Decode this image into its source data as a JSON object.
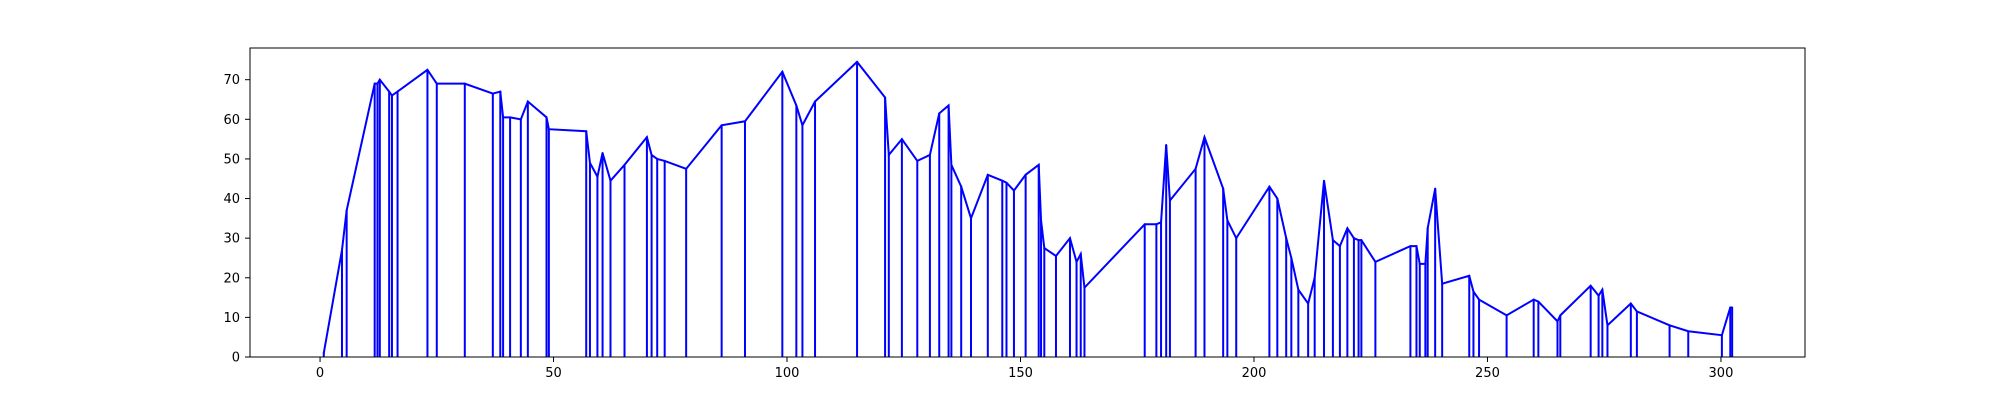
{
  "chart_data": {
    "type": "line",
    "title": "",
    "xlabel": "",
    "ylabel": "",
    "xlim": [
      -15,
      318
    ],
    "ylim": [
      0,
      78
    ],
    "xticks": [
      0,
      50,
      100,
      150,
      200,
      250,
      300
    ],
    "yticks": [
      0,
      10,
      20,
      30,
      40,
      50,
      60,
      70
    ],
    "grid": false,
    "line_color": "#0000ff",
    "drop_lines_to_axis": true,
    "series": [
      {
        "x": [
          0.8,
          4.7,
          5.7,
          11.7,
          12.3,
          12.8,
          14.8,
          15.4,
          16.6,
          23.0,
          25.0,
          31.0,
          37.0,
          38.6,
          39.2,
          40.7,
          43.0,
          44.5,
          48.5,
          49.0,
          57.0,
          57.8,
          59.4,
          60.5,
          62.2,
          65.2,
          70.0,
          71.0,
          72.2,
          73.8,
          78.4,
          86.0,
          91.0,
          99.0,
          102.0,
          103.3,
          106.0,
          115.0,
          121.0,
          121.8,
          124.6,
          127.9,
          130.6,
          132.6,
          134.6,
          135.2,
          137.3,
          139.4,
          143.0,
          146.1,
          147.0,
          148.6,
          151.1,
          153.9,
          154.4,
          155.1,
          157.6,
          160.6,
          162.0,
          162.9,
          163.7,
          176.6,
          179.1,
          180.1,
          181.2,
          182.0,
          187.5,
          189.4,
          193.4,
          194.3,
          196.2,
          203.3,
          205.0,
          206.9,
          208.0,
          209.5,
          211.6,
          213.0,
          215.0,
          216.9,
          218.4,
          220.0,
          221.4,
          222.4,
          223.0,
          226.0,
          233.5,
          234.8,
          235.5,
          236.7,
          237.2,
          238.8,
          240.3,
          246.1,
          247.0,
          248.2,
          254.1,
          259.9,
          260.9,
          265.0,
          265.6,
          272.1,
          273.8,
          274.6,
          275.7,
          280.7,
          282.0,
          289.0,
          293.0,
          300.2,
          302.0,
          302.4
        ],
        "y": [
          1,
          27,
          37,
          69,
          69,
          70,
          67,
          66,
          67,
          72.5,
          69,
          69,
          66.5,
          67,
          60.5,
          60.5,
          60,
          64.5,
          60.5,
          57.5,
          57,
          49,
          45.5,
          51.5,
          44.5,
          48.5,
          55.5,
          51,
          50,
          49.5,
          47.5,
          58.5,
          59.5,
          72,
          63.5,
          58.5,
          64.5,
          74.5,
          65.5,
          51,
          55,
          49.5,
          51,
          61.5,
          63.5,
          48.5,
          43,
          35,
          46,
          44.5,
          44,
          42,
          46,
          48.5,
          34.5,
          27.5,
          25.5,
          30,
          24,
          26,
          17.5,
          33.5,
          33.5,
          34,
          53.5,
          39.5,
          47.5,
          55.5,
          42.5,
          34.5,
          30,
          43,
          40,
          30,
          25,
          17,
          13.5,
          20,
          44.5,
          29.5,
          28,
          32.5,
          30,
          29.5,
          29.5,
          24,
          28,
          28,
          23.5,
          23.5,
          32.5,
          42.5,
          18.5,
          20.5,
          16.5,
          14.5,
          10.5,
          14.5,
          14,
          9,
          10.5,
          18,
          15.5,
          17,
          8,
          13.5,
          11.5,
          8,
          6.5,
          5.5,
          12.5,
          12.5
        ]
      }
    ]
  }
}
